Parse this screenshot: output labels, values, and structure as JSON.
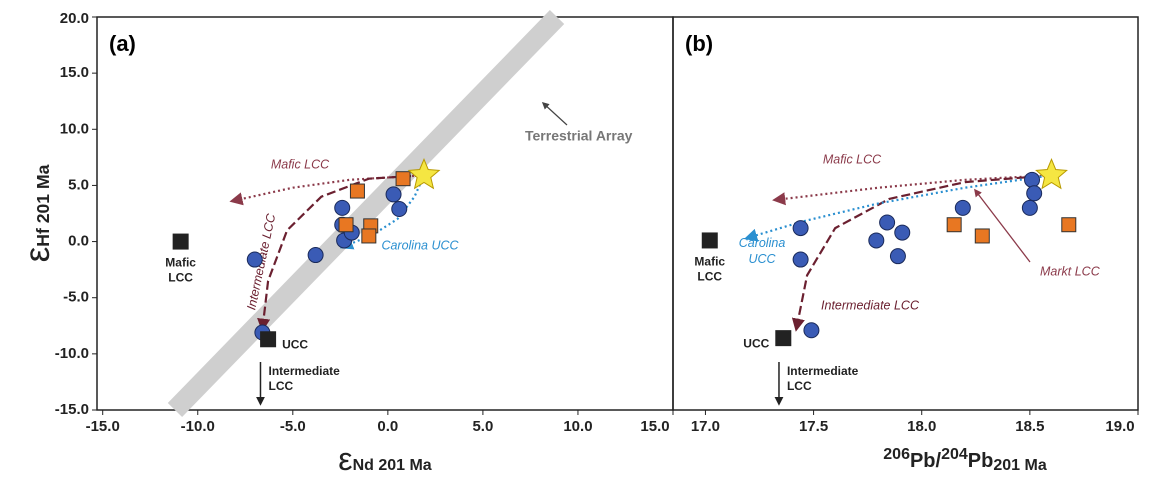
{
  "chart_data": [
    {
      "type": "scatter",
      "panel_label": "(a)",
      "xlabel": [
        {
          "text": "ε"
        },
        {
          "text": "Nd 201 Ma",
          "sub": true
        }
      ],
      "ylabel": [
        {
          "text": "ε"
        },
        {
          "text": "Hf 201 Ma",
          "sub": true
        }
      ],
      "xlim": [
        -15.3,
        15
      ],
      "xticks": [
        {
          "value": -15,
          "label": "-15.0"
        },
        {
          "value": -10,
          "label": "-10.0"
        },
        {
          "value": -5,
          "label": "-5.0"
        },
        {
          "value": 0,
          "label": "0.0"
        },
        {
          "value": 5,
          "label": "5.0"
        },
        {
          "value": 10,
          "label": "10.0"
        },
        {
          "value": 15,
          "label": "15.0"
        }
      ],
      "ylim": [
        -15,
        20
      ],
      "yticks": [
        {
          "value": -15,
          "label": "-15.0"
        },
        {
          "value": -10,
          "label": "-10.0"
        },
        {
          "value": -5,
          "label": "-5.0"
        },
        {
          "value": 0,
          "label": "0.0"
        },
        {
          "value": 5,
          "label": "5.0"
        },
        {
          "value": 10,
          "label": "10.0"
        },
        {
          "value": 15,
          "label": "15.0"
        },
        {
          "value": 20,
          "label": "20.0"
        }
      ],
      "band": {
        "label": "Terrestrial Array",
        "color": "#cfcfcf",
        "x": [
          -11.2,
          8.9
        ],
        "y": [
          -15,
          20
        ]
      },
      "curves": [
        {
          "label": "Mafic LCC",
          "color": "#8b3a4a",
          "style": "dotted",
          "x": [
            1.9,
            -2,
            -5,
            -8.2
          ],
          "y": [
            5.9,
            5.5,
            4.8,
            3.6
          ]
        },
        {
          "label": "Intermediate LCC",
          "color": "#6b2030",
          "style": "dashed",
          "x": [
            1.9,
            -1,
            -3.5,
            -5.3,
            -6.3,
            -6.6
          ],
          "y": [
            5.9,
            5.6,
            4,
            1,
            -3.5,
            -7.8
          ]
        },
        {
          "label": "Carolina UCC",
          "color": "#2a8fd0",
          "style": "dotted",
          "x": [
            1.9,
            1.4,
            0.5,
            -0.8,
            -2.4
          ],
          "y": [
            5.9,
            4,
            2,
            0.6,
            -0.5
          ]
        }
      ],
      "series": [
        {
          "marker": "circle",
          "color": "#3a5bb5",
          "x": [
            -6.6,
            -7.0,
            -3.8,
            -2.4,
            -2.4,
            -2.3,
            -1.9,
            0.3,
            0.6
          ],
          "y": [
            -8.1,
            -1.6,
            -1.2,
            3.0,
            1.5,
            0.1,
            0.8,
            4.2,
            2.9
          ]
        },
        {
          "marker": "square",
          "color": "#e87722",
          "x": [
            -1.6,
            -2.2,
            -0.9,
            -1.0,
            0.8
          ],
          "y": [
            4.5,
            1.5,
            1.4,
            0.5,
            5.6
          ]
        },
        {
          "marker": "star",
          "color": "#f5e642",
          "x": [
            1.9
          ],
          "y": [
            5.9
          ]
        }
      ],
      "endmembers": [
        {
          "lines": [
            "Mafic",
            "LCC"
          ],
          "x": -10.9,
          "y": 0
        },
        {
          "lines": [
            "UCC"
          ],
          "x": -6.3,
          "y": -8.7
        }
      ],
      "offscale": {
        "lines": [
          "Intermediate",
          "LCC"
        ],
        "x": -6.7
      }
    },
    {
      "type": "scatter",
      "panel_label": "(b)",
      "xlabel": [
        {
          "text": "206",
          "sup": true
        },
        {
          "text": "Pb/"
        },
        {
          "text": "204",
          "sup": true
        },
        {
          "text": "Pb"
        },
        {
          "text": "201 Ma",
          "sub": true
        }
      ],
      "xlim": [
        16.85,
        19.0
      ],
      "xticks": [
        {
          "value": 17,
          "label": "17.0"
        },
        {
          "value": 17.5,
          "label": "17.5"
        },
        {
          "value": 18,
          "label": "18.0"
        },
        {
          "value": 18.5,
          "label": "18.5"
        },
        {
          "value": 19,
          "label": "19.0"
        }
      ],
      "ylim": [
        -15,
        20
      ],
      "curves": [
        {
          "label": "Mafic LCC",
          "color": "#8b3a4a",
          "style": "dotted",
          "x": [
            18.6,
            18.2,
            17.8,
            17.32
          ],
          "y": [
            5.9,
            5.5,
            4.8,
            3.7
          ]
        },
        {
          "label": "Intermediate LCC",
          "color": "#6b2030",
          "style": "dashed",
          "x": [
            18.6,
            18.2,
            17.85,
            17.6,
            17.47,
            17.42
          ],
          "y": [
            5.9,
            5.3,
            3.8,
            1.2,
            -3,
            -7.8
          ]
        },
        {
          "label": "Carolina UCC",
          "color": "#2a8fd0",
          "style": "dotted",
          "x": [
            18.6,
            18.2,
            17.8,
            17.45,
            17.19
          ],
          "y": [
            5.9,
            4.8,
            3.4,
            1.8,
            0.3
          ]
        }
      ],
      "pointer": {
        "label": "Markt LCC",
        "color": "#8b3a4a"
      },
      "series": [
        {
          "marker": "circle",
          "color": "#3a5bb5",
          "x": [
            17.44,
            17.44,
            17.49,
            17.79,
            17.84,
            17.91,
            17.89,
            18.19,
            18.51,
            18.52,
            18.5
          ],
          "y": [
            1.2,
            -1.6,
            -7.9,
            0.1,
            1.7,
            0.8,
            -1.3,
            3.0,
            5.5,
            4.3,
            3.0
          ]
        },
        {
          "marker": "square",
          "color": "#e87722",
          "x": [
            18.15,
            18.28,
            18.68
          ],
          "y": [
            1.5,
            0.5,
            1.5
          ]
        },
        {
          "marker": "star",
          "color": "#f5e642",
          "x": [
            18.6
          ],
          "y": [
            5.9
          ]
        }
      ],
      "endmembers": [
        {
          "lines": [
            "Mafic",
            "LCC"
          ],
          "x": 17.02,
          "y": 0.1
        },
        {
          "lines": [
            "UCC"
          ],
          "x": 17.36,
          "y": -8.6
        }
      ],
      "offscale": {
        "lines": [
          "Intermediate",
          "LCC"
        ],
        "x": 17.34
      }
    }
  ]
}
